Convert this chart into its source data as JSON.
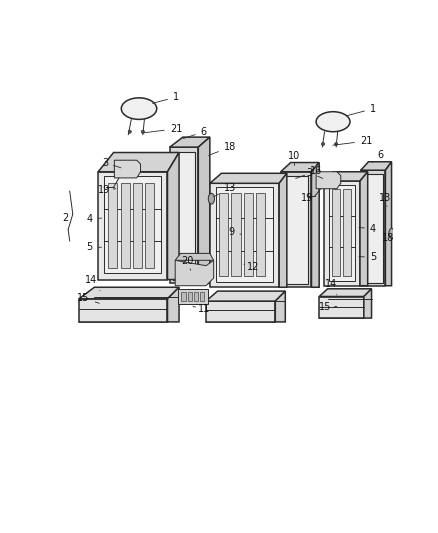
{
  "bg_color": "#ffffff",
  "figsize": [
    4.38,
    5.33
  ],
  "dpi": 100,
  "line_color": "#2a2a2a",
  "label_color": "#111111",
  "font_size": 7.0,
  "seat_fill": "#e8e8e8",
  "frame_fill": "#d8d8d8",
  "inner_fill": "#f0f0f0",
  "cushion_fill": "#e4e4e4"
}
